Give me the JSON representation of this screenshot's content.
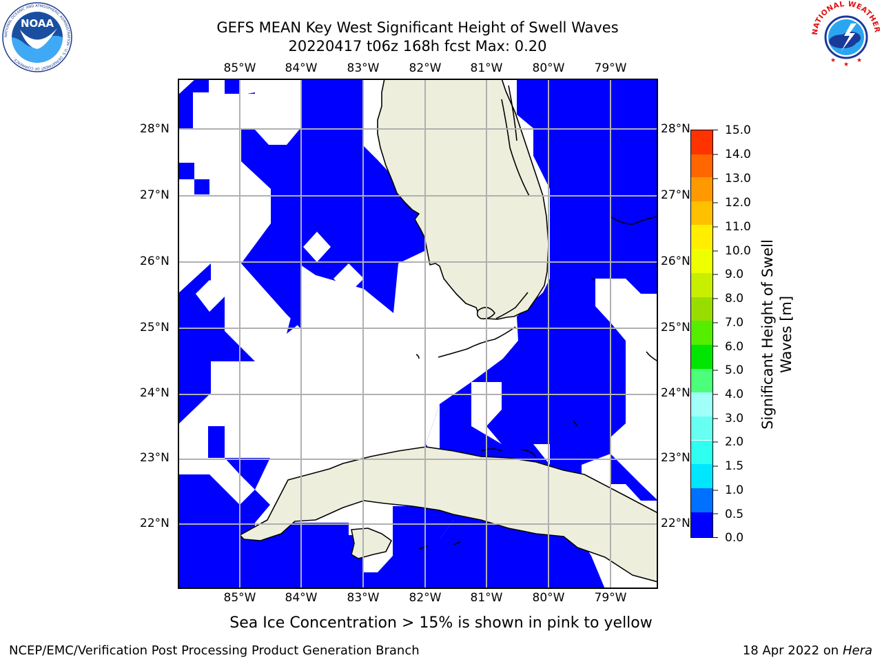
{
  "title": {
    "line1": "GEFS MEAN Key West Significant Height of Swell Waves",
    "line2": "20220417 t06z 168h fcst   Max: 0.20"
  },
  "logos": {
    "left": "NOAA",
    "left_ring": "NATIONAL OCEANIC AND ATMOSPHERIC ADMINISTRATION · U.S. DEPARTMENT OF COMMERCE ·",
    "right_ring": "NATIONAL WEATHER SERVICE"
  },
  "map": {
    "longitude_labels": [
      "85°W",
      "84°W",
      "83°W",
      "82°W",
      "81°W",
      "80°W",
      "79°W"
    ],
    "latitude_labels": [
      "28°N",
      "27°N",
      "26°N",
      "25°N",
      "24°N",
      "23°N",
      "22°N"
    ],
    "colors": {
      "ocean_field": "#0000ff",
      "land": "#eeeedd",
      "grid": "#b0b0b0"
    }
  },
  "colorbar": {
    "title_line1": "Significant Height of Swell",
    "title_line2": "Waves [m]",
    "tick_labels": [
      "0.0",
      "0.5",
      "1.0",
      "1.5",
      "2.0",
      "3.0",
      "4.0",
      "5.0",
      "6.0",
      "7.0",
      "8.0",
      "9.0",
      "10.0",
      "11.0",
      "12.0",
      "13.0",
      "14.0",
      "15.0"
    ],
    "colors": [
      "#0000ff",
      "#0070ff",
      "#00e6ff",
      "#2efff0",
      "#66fff2",
      "#a0fff8",
      "#4cff7a",
      "#00e600",
      "#55ee00",
      "#99dd00",
      "#c8ee00",
      "#eeff00",
      "#ffee00",
      "#ffc000",
      "#ff9900",
      "#ff6600",
      "#ff3300",
      "#ff0000"
    ]
  },
  "subtitle": "Sea Ice Concentration > 15% is shown in pink to yellow",
  "footer": {
    "left": "NCEP/EMC/Verification Post Processing Product Generation Branch",
    "right_date": "18 Apr 2022 on ",
    "right_host": "Hera"
  }
}
